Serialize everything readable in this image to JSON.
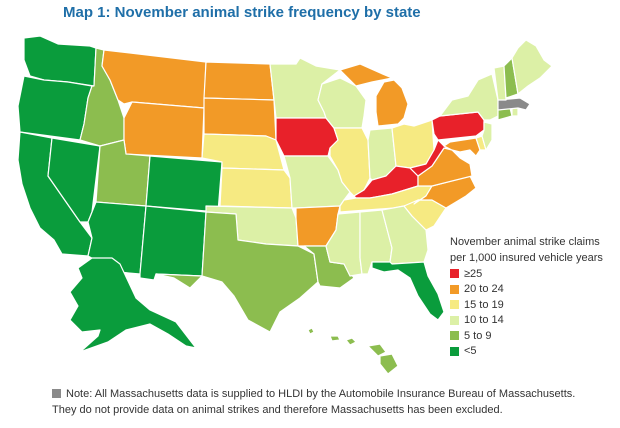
{
  "title": "Map 1: November animal strike frequency by state",
  "legend": {
    "title_line1": "November animal strike claims",
    "title_line2": "per 1,000 insured vehicle years",
    "items": [
      {
        "label": "≥25",
        "color": "#e8212a"
      },
      {
        "label": "20 to 24",
        "color": "#f29a27"
      },
      {
        "label": "15 to 19",
        "color": "#f6ea82"
      },
      {
        "label": "10 to 14",
        "color": "#dcf0a6"
      },
      {
        "label": "5 to 9",
        "color": "#8cbd4f"
      },
      {
        "label": "<5",
        "color": "#0a9c3c"
      }
    ]
  },
  "note": {
    "line1": "Note: All Massachusetts data is supplied to HLDI by the Automobile Insurance Bureau of Massachusetts.",
    "line2": "They do not provide data on animal strikes and therefore Massachusetts has been excluded.",
    "color": "#8a8a8a"
  },
  "states": {
    "WA": "lt5",
    "OR": "lt5",
    "CA": "lt5",
    "NV": "lt5",
    "AZ": "lt5",
    "NM": "lt5",
    "CO": "lt5",
    "UT": "5to9",
    "ID": "5to9",
    "MT": "20to24",
    "WY": "20to24",
    "ND": "20to24",
    "SD": "20to24",
    "NE": "15to19",
    "KS": "15to19",
    "OK": "10to14",
    "TX": "5to9",
    "MN": "10to14",
    "IA": "ge25",
    "MO": "10to14",
    "AR": "20to24",
    "LA": "5to9",
    "WI": "10to14",
    "IL": "15to19",
    "MI": "20to24",
    "IN": "10to14",
    "OH": "15to19",
    "KY": "ge25",
    "TN": "15to19",
    "MS": "10to14",
    "AL": "10to14",
    "GA": "10to14",
    "FL": "lt5",
    "SC": "15to19",
    "NC": "20to24",
    "VA": "20to24",
    "WV": "ge25",
    "PA": "ge25",
    "NY": "10to14",
    "VT": "10to14",
    "NH": "5to9",
    "ME": "10to14",
    "MA": "excluded",
    "CT": "5to9",
    "RI": "10to14",
    "NJ": "10to14",
    "DE": "15to19",
    "MD": "20to24",
    "AK": "lt5",
    "HI": "5to9"
  },
  "category_colors": {
    "ge25": "#e8212a",
    "20to24": "#f29a27",
    "15to19": "#f6ea82",
    "10to14": "#dcf0a6",
    "5to9": "#8cbd4f",
    "lt5": "#0a9c3c",
    "excluded": "#8a8a8a"
  }
}
